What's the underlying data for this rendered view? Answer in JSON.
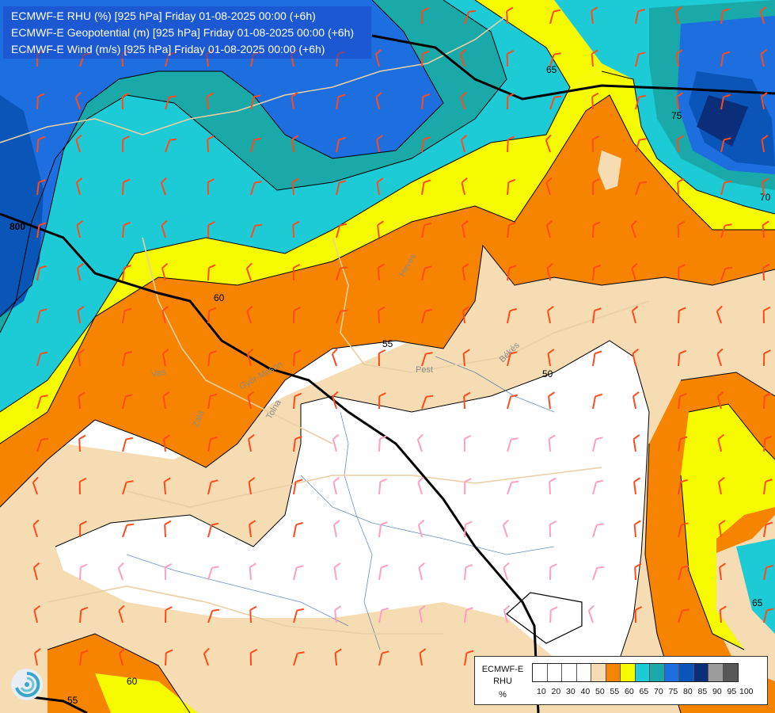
{
  "header": {
    "line1": "ECMWF-E RHU (%) [925 hPa] Friday 01-08-2025 00:00 (+6h)",
    "line2": "ECMWF-E Geopotential (m) [925 hPa] Friday 01-08-2025 00:00 (+6h)",
    "line3": "ECMWF-E Wind (m/s) [925 hPa] Friday 01-08-2025 00:00 (+6h)"
  },
  "legend": {
    "title1": "ECMWF-E",
    "title2": "RHU",
    "unit": "%",
    "ticks": [
      "10",
      "20",
      "30",
      "40",
      "50",
      "55",
      "60",
      "65",
      "70",
      "75",
      "80",
      "85",
      "90",
      "95",
      "100"
    ],
    "colors": [
      "#ffffff",
      "#ffffff",
      "#ffffff",
      "#ffffff",
      "#f6dcb2",
      "#f78400",
      "#f6fa00",
      "#1ccbd5",
      "#19a9a9",
      "#1d6fe0",
      "#0a55b8",
      "#0a2e7a",
      "#9c9c9c",
      "#585858"
    ]
  },
  "map_labels": {
    "geo_800": "800",
    "contour_65_top": "65",
    "contour_75": "75",
    "contour_70": "70",
    "contour_60": "60",
    "contour_55": "55",
    "contour_50": "50",
    "contour_65_right": "65",
    "contour_60_bottom": "60",
    "contour_55_bottom": "55",
    "region_heves": "Heves",
    "region_pest": "Pest",
    "region_bekes": "Békés",
    "region_vas": "Vas",
    "region_zala": "Zala",
    "region_tolna": "Tolna",
    "region_gyor": "Győr-Moson"
  },
  "colors": {
    "rh_50": "#f6dcb2",
    "rh_55": "#f78400",
    "rh_60": "#f6fa00",
    "rh_65": "#1ccbd5",
    "rh_70": "#19a9a9",
    "rh_75": "#1d6fe0",
    "rh_80": "#0a55b8",
    "rh_85": "#0a2e7a",
    "barb_on_color": "#ff4a1c",
    "barb_on_white": "#ff9ec4"
  }
}
